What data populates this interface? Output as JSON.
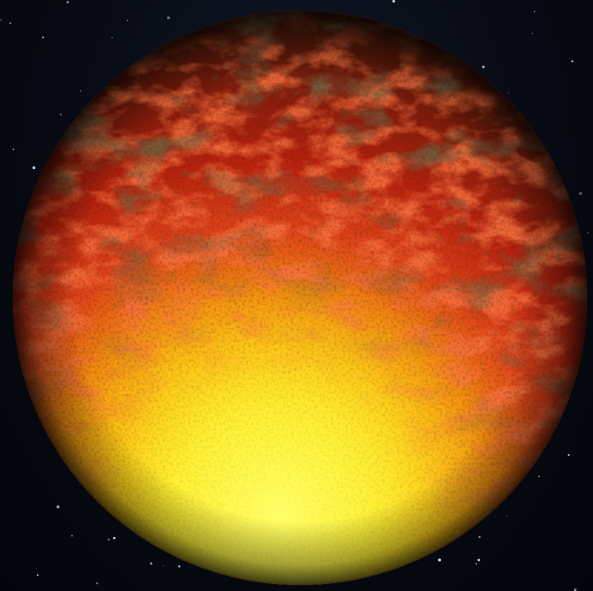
{
  "scene": {
    "subject": "lava-planet",
    "background_color": "#05070d",
    "palette": {
      "surface_hot": "#fff23a",
      "surface_glow": "#ffb000",
      "surface_lava": "#e8381a",
      "surface_lava_dark": "#a21608",
      "surface_crust": "#3a2a14",
      "star": "#d9e2f0"
    }
  }
}
